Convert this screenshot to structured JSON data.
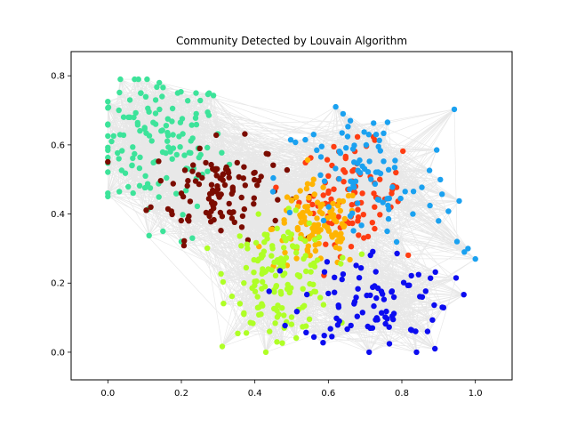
{
  "chart_data": {
    "type": "scatter",
    "title": "Community Detected by Louvain Algorithm",
    "xlabel": "",
    "ylabel": "",
    "xlim": [
      -0.1,
      1.1
    ],
    "ylim": [
      -0.08,
      0.87
    ],
    "xticks": [
      0.0,
      0.2,
      0.4,
      0.6,
      0.8,
      1.0
    ],
    "yticks": [
      0.0,
      0.2,
      0.4,
      0.6,
      0.8
    ],
    "xtick_labels": [
      "0.0",
      "0.2",
      "0.4",
      "0.6",
      "0.8",
      "1.0"
    ],
    "ytick_labels": [
      "0.0",
      "0.2",
      "0.4",
      "0.6",
      "0.8"
    ],
    "grid": false,
    "legend": "none",
    "edge_color": "#000000",
    "communities": [
      {
        "color": "#3de39a",
        "center": [
          0.14,
          0.6
        ],
        "spread": [
          0.09,
          0.1
        ],
        "count": 140,
        "anchors": [
          [
            0.0,
            0.66
          ],
          [
            0.01,
            0.61
          ],
          [
            0.03,
            0.7
          ],
          [
            0.06,
            0.73
          ],
          [
            0.09,
            0.75
          ],
          [
            0.14,
            0.78
          ],
          [
            0.19,
            0.75
          ],
          [
            0.24,
            0.75
          ],
          [
            0.03,
            0.56
          ],
          [
            0.15,
            0.35
          ],
          [
            0.2,
            0.32
          ],
          [
            0.23,
            0.33
          ],
          [
            0.1,
            0.65
          ],
          [
            0.17,
            0.58
          ]
        ]
      },
      {
        "color": "#7b0c00",
        "center": [
          0.3,
          0.47
        ],
        "spread": [
          0.09,
          0.07
        ],
        "count": 110,
        "anchors": [
          [
            0.25,
            0.59
          ],
          [
            0.2,
            0.46
          ],
          [
            0.22,
            0.38
          ],
          [
            0.33,
            0.43
          ],
          [
            0.4,
            0.52
          ]
        ]
      },
      {
        "color": "#ff3d12",
        "center": [
          0.66,
          0.46
        ],
        "spread": [
          0.07,
          0.07
        ],
        "count": 90,
        "anchors": [
          [
            0.74,
            0.5
          ],
          [
            0.77,
            0.42
          ],
          [
            0.68,
            0.38
          ],
          [
            0.6,
            0.51
          ]
        ]
      },
      {
        "color": "#ffb400",
        "center": [
          0.57,
          0.36
        ],
        "spread": [
          0.06,
          0.06
        ],
        "count": 110,
        "anchors": [
          [
            0.5,
            0.44
          ],
          [
            0.55,
            0.28
          ],
          [
            0.63,
            0.3
          ],
          [
            0.56,
            0.5
          ]
        ]
      },
      {
        "color": "#afff26",
        "center": [
          0.47,
          0.22
        ],
        "spread": [
          0.07,
          0.08
        ],
        "count": 150,
        "anchors": [
          [
            0.37,
            0.11
          ],
          [
            0.44,
            0.06
          ],
          [
            0.46,
            0.03
          ],
          [
            0.48,
            0.07
          ],
          [
            0.38,
            0.3
          ],
          [
            0.37,
            0.2
          ],
          [
            0.53,
            0.13
          ]
        ]
      },
      {
        "color": "#1aa1f0",
        "center": [
          0.7,
          0.5
        ],
        "spread": [
          0.12,
          0.1
        ],
        "count": 95,
        "anchors": [
          [
            0.62,
            0.71
          ],
          [
            0.64,
            0.69
          ],
          [
            0.66,
            0.67
          ],
          [
            0.71,
            0.63
          ],
          [
            0.73,
            0.63
          ],
          [
            0.95,
            0.32
          ],
          [
            0.97,
            0.29
          ],
          [
            1.0,
            0.27
          ],
          [
            0.98,
            0.3
          ],
          [
            0.9,
            0.38
          ],
          [
            0.83,
            0.4
          ],
          [
            0.76,
            0.35
          ],
          [
            0.56,
            0.63
          ]
        ]
      },
      {
        "color": "#0c0cf0",
        "center": [
          0.73,
          0.16
        ],
        "spread": [
          0.1,
          0.07
        ],
        "count": 90,
        "anchors": [
          [
            0.84,
            0.0
          ],
          [
            0.89,
            0.01
          ],
          [
            0.87,
            0.06
          ],
          [
            0.91,
            0.13
          ],
          [
            0.6,
            0.17
          ],
          [
            0.63,
            0.09
          ],
          [
            0.72,
            0.07
          ]
        ]
      }
    ]
  }
}
